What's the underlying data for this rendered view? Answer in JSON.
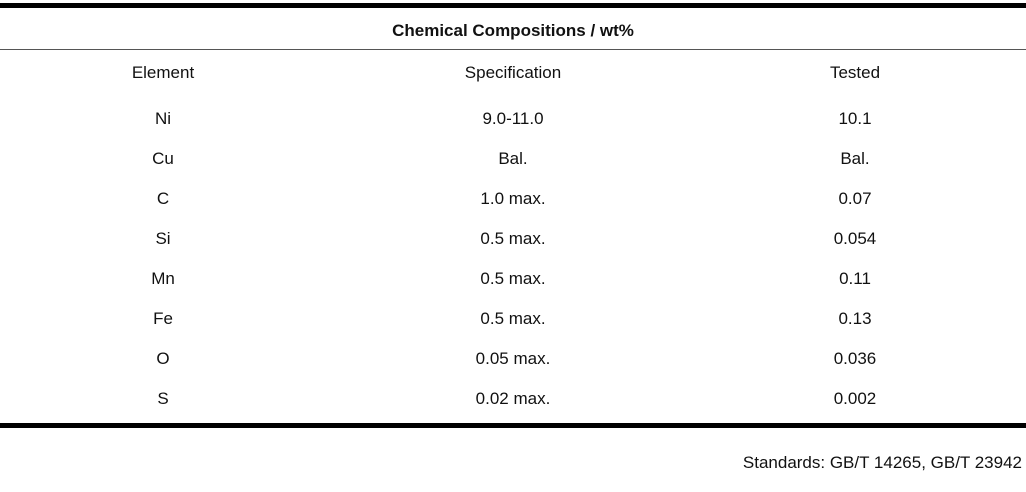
{
  "title": "Chemical Compositions / wt%",
  "table": {
    "header": [
      "Element",
      "Specification",
      "Tested"
    ],
    "rows": [
      [
        "Ni",
        "9.0-11.0",
        "10.1"
      ],
      [
        "Cu",
        "Bal.",
        "Bal."
      ],
      [
        "C",
        "1.0 max.",
        "0.07"
      ],
      [
        "Si",
        "0.5 max.",
        "0.054"
      ],
      [
        "Mn",
        "0.5 max.",
        "0.11"
      ],
      [
        "Fe",
        "0.5 max.",
        "0.13"
      ],
      [
        "O",
        "0.05 max.",
        "0.036"
      ],
      [
        "S",
        "0.02 max.",
        "0.002"
      ]
    ]
  },
  "footer": "Standards: GB/T 14265, GB/T 23942"
}
